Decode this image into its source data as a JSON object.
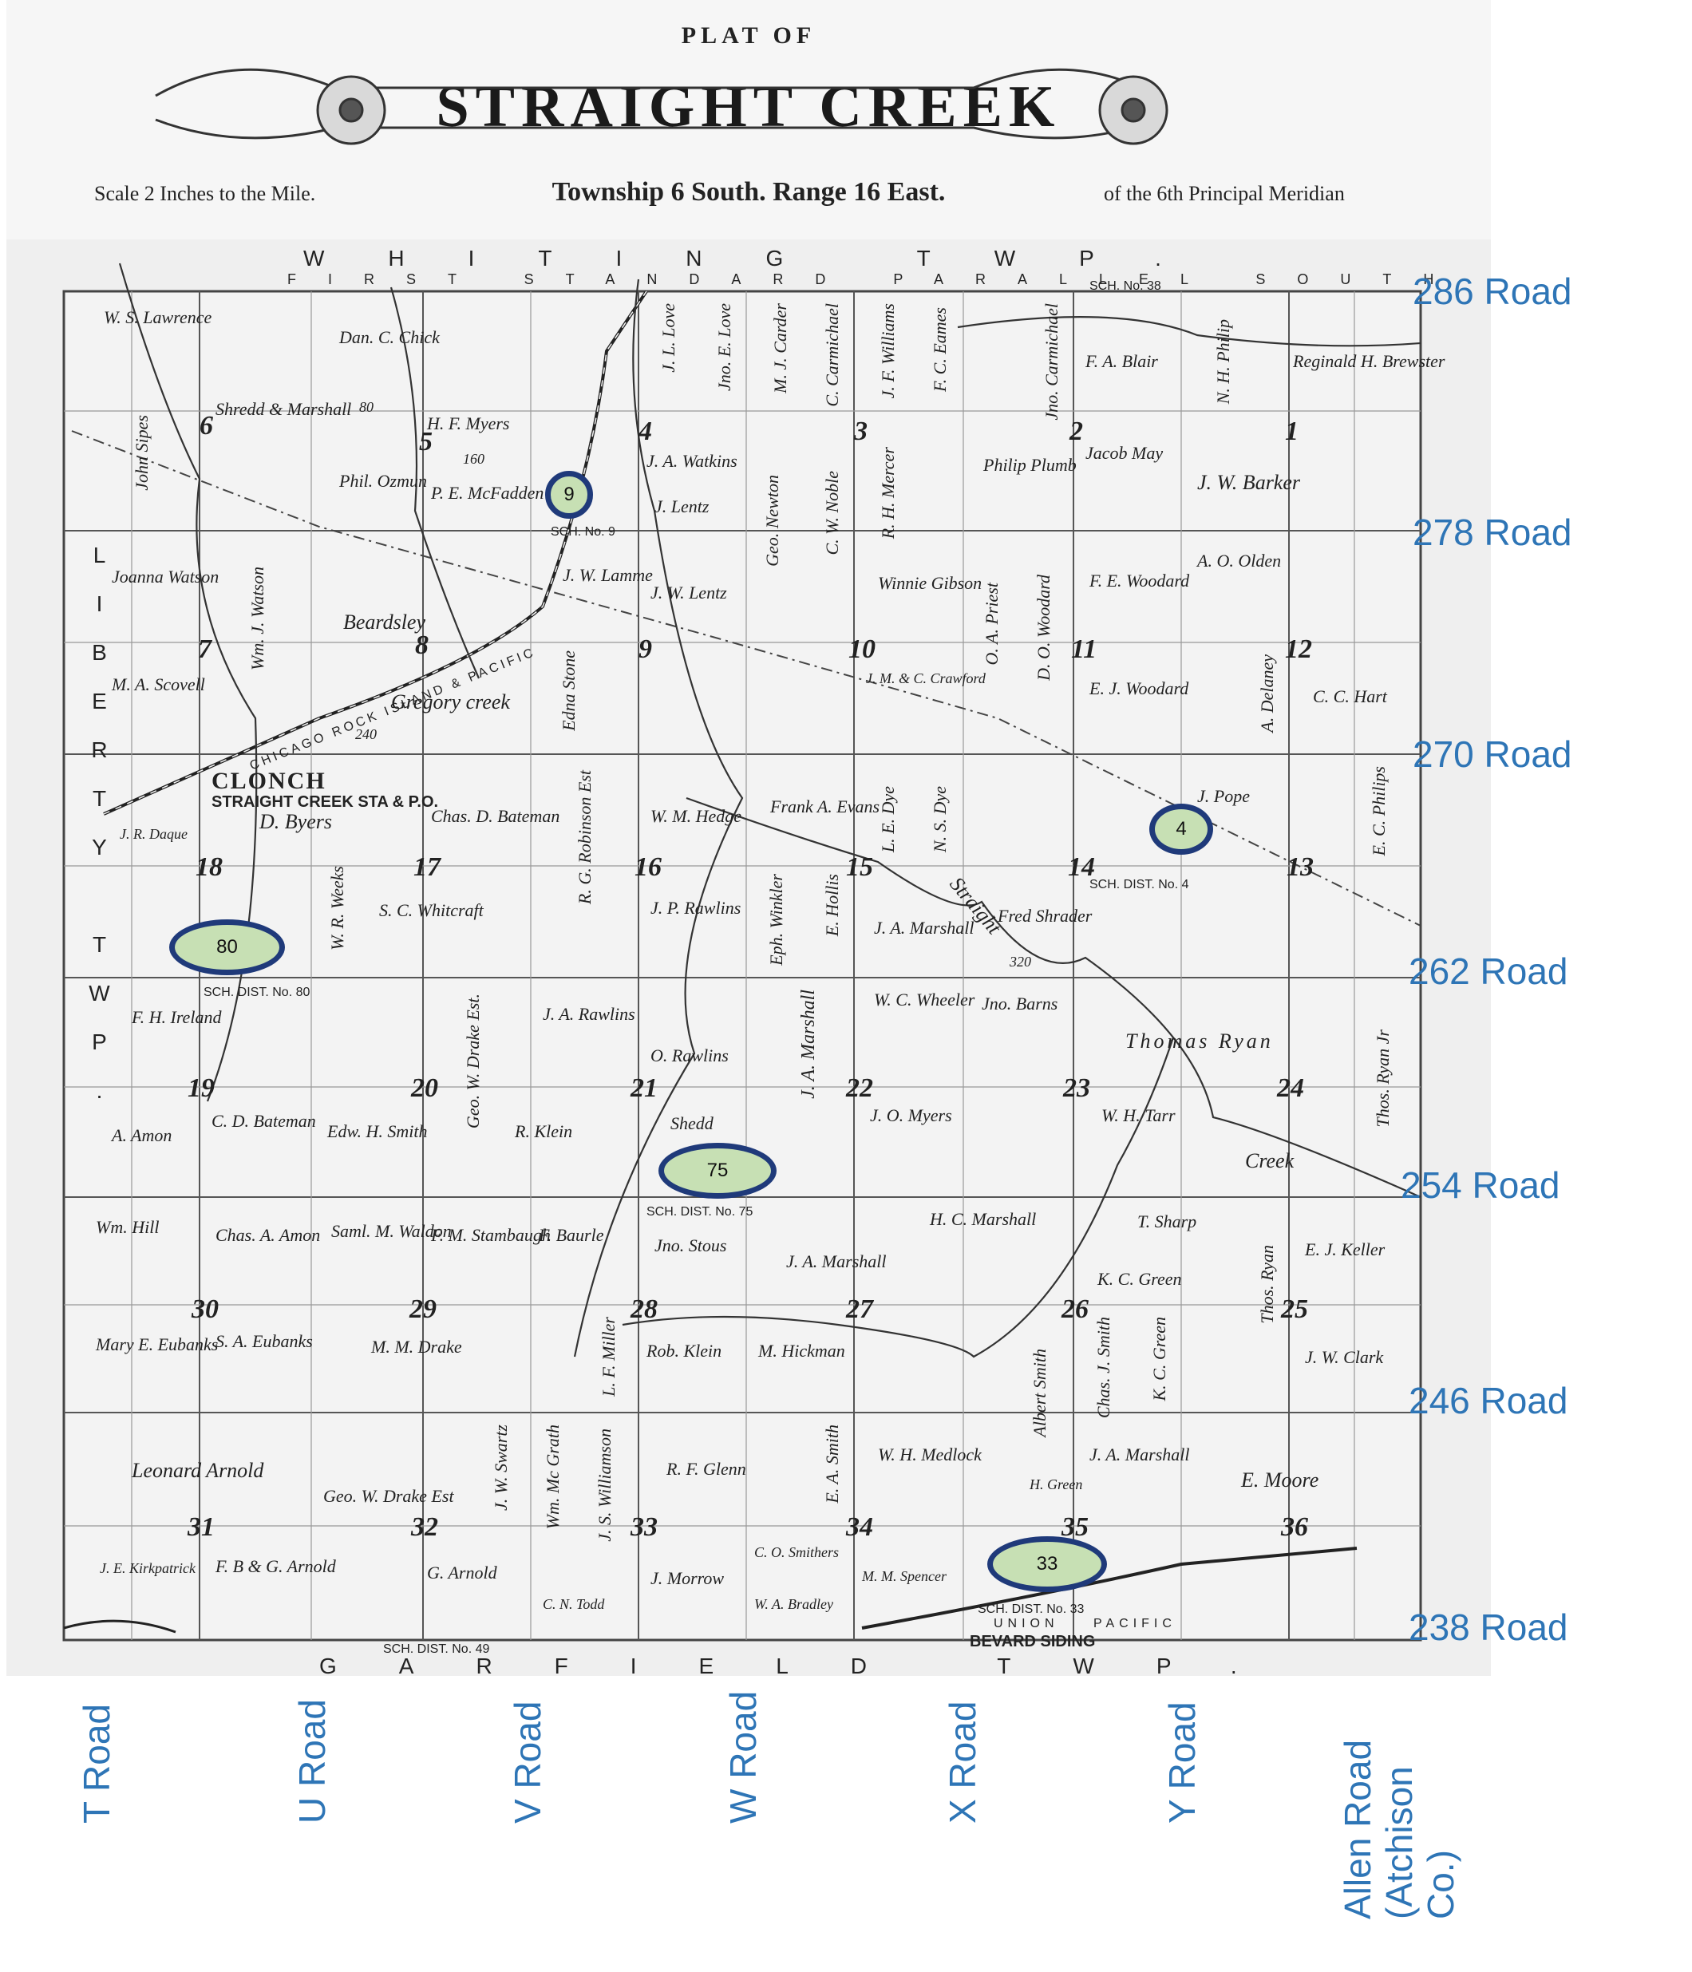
{
  "header": {
    "plat_of": "PLAT OF",
    "title": "STRAIGHT CREEK",
    "scale": "Scale 2 Inches to the Mile.",
    "township": "Township 6 South. Range 16 East.",
    "meridian": "of the 6th Principal Meridian"
  },
  "border_labels": {
    "north": "WHITING TWP.",
    "north_parallel": "FIRST STANDARD PARALLEL SOUTH",
    "south": "GARFIELD TWP.",
    "west": "LIBERTY TWP."
  },
  "places": {
    "clonch": "CLONCH",
    "station": "STRAIGHT CREEK STA & P.O.",
    "bevard": "BEVARD SIDING",
    "railroad": "CHICAGO ROCK ISLAND & PACIFIC",
    "creek1": "Gregory creek",
    "creek2": "Straight",
    "creek3": "Creek"
  },
  "sections": [
    "6",
    "5",
    "4",
    "3",
    "2",
    "1",
    "7",
    "8",
    "9",
    "10",
    "11",
    "12",
    "18",
    "17",
    "16",
    "15",
    "14",
    "13",
    "19",
    "20",
    "21",
    "22",
    "23",
    "24",
    "30",
    "29",
    "28",
    "27",
    "26",
    "25",
    "31",
    "32",
    "33",
    "34",
    "35",
    "36"
  ],
  "owners": {
    "s6a": "W. S. Lawrence",
    "s6b": "Shredd & Marshall",
    "s5a": "Dan. C. Chick",
    "s5b": "H. F. Myers",
    "s5c": "Phil. Ozmun",
    "s5d": "P. E. McFadden",
    "s4a": "J. A. Watkins",
    "s4b": "J. Lentz",
    "s2a": "F. A. Blair",
    "s2b": "Philip Plumb",
    "s2c": "Jacob May",
    "s1a": "Reginald H. Brewster",
    "s1b": "J. W. Barker",
    "s7a": "Joanna Watson",
    "s7b": "M. A. Scovell",
    "s8a": "Beardsley",
    "s9a": "J. W. Lamme",
    "s9b": "J. W. Lentz",
    "s10a": "Winnie Gibson",
    "s10b": "J. M. & C. Crawford",
    "s11a": "F. E. Woodard",
    "s11b": "E. J. Woodard",
    "s12a": "A. O. Olden",
    "s12b": "C. C. Hart",
    "s18a": "D. Byers",
    "s18b": "J. R. Daque",
    "s17a": "Chas. D. Bateman",
    "s17b": "S. C. Whitcraft",
    "s16a": "W. M. Hedge",
    "s16b": "J. P. Rawlins",
    "s15a": "Frank A. Evans",
    "s15b": "J. A. Marshall",
    "s14a": "Fred Shrader",
    "s13a": "J. Pope",
    "s19a": "F. H. Ireland",
    "s19b": "C. D. Bateman",
    "s19c": "A. Amon",
    "s20a": "Edw. H. Smith",
    "s21a": "J. A. Rawlins",
    "s21b": "R. Klein",
    "s21c": "O. Rawlins",
    "s21d": "Shedd",
    "s22a": "W. C. Wheeler",
    "s22b": "J. O. Myers",
    "s23a": "Jno. Barns",
    "s23b": "Thomas Ryan",
    "s24a": "W. H. Tarr",
    "s30a": "Wm. Hill",
    "s30b": "Chas. A. Amon",
    "s30c": "Mary E. Eubanks",
    "s30d": "S. A. Eubanks",
    "s29a": "Saml. M. Waldon",
    "s29b": "F. M. Stambaugh",
    "s29c": "M. M. Drake",
    "s28a": "F. Baurle",
    "s28b": "Jno. Stous",
    "s28c": "Rob. Klein",
    "s27a": "J. A. Marshall",
    "s27b": "M. Hickman",
    "s26a": "H. C. Marshall",
    "s26b": "K. C. Green",
    "s25a": "E. J. Keller",
    "s25b": "J. W. Clark",
    "s25c": "T. Sharp",
    "s31a": "Leonard Arnold",
    "s31b": "J. E. Kirkpatrick",
    "s31c": "F. B & G. Arnold",
    "s32a": "Geo. W. Drake Est",
    "s32b": "G. Arnold",
    "s33a": "R. F. Glenn",
    "s33b": "J. Morrow",
    "s33c": "C. N. Todd",
    "s34a": "W. H. Medlock",
    "s34b": "C. O. Smithers",
    "s34c": "M. M. Spencer",
    "s34d": "W. A. Bradley",
    "s35a": "J. A. Marshall",
    "s36a": "E. Moore",
    "s35b": "H. Green"
  },
  "vertical_owners": {
    "v1": "J. L. Love",
    "v2": "Jno. E. Love",
    "v3": "M. J. Carder",
    "v4": "C. Carmichael",
    "v5": "J. F. Williams",
    "v6": "F. C. Eames",
    "v7": "Jno. Carmichael",
    "v8": "N. H. Philip",
    "v9": "Geo. Newton",
    "v10": "C. W. Noble",
    "v11": "R. H. Mercer",
    "v12": "Wm. J. Watson",
    "v13": "Edna Stone",
    "v14": "O. A. Priest",
    "v15": "D. O. Woodard",
    "v16": "A. Delaney",
    "v17": "R. G. Robinson Est",
    "v18": "W. R. Weeks",
    "v19": "Eph. Winkler",
    "v20": "E. Hollis",
    "v21": "L. E. Dye",
    "v22": "N. S. Dye",
    "v23": "J. A. Marshall",
    "v24": "Geo. W. Drake Est.",
    "v25": "Thos. Ryan",
    "v26": "J. W. Swartz",
    "v27": "Wm. Mc Grath",
    "v28": "J. S. Williamson",
    "v29": "E. A. Smith",
    "v30": "Albert Smith",
    "v31": "Chas. J. Smith",
    "v32": "K. C. Green",
    "v33": "Thos. Ryan Jr",
    "v34": "L. F. Miller",
    "v35": "John Sipes",
    "v36": "E. C. Philips"
  },
  "small_labels": {
    "sch38": "SCH. No. 38",
    "sch9": "SCH. No. 9",
    "sch4": "SCH. DIST. No. 4",
    "sch80": "SCH. DIST. No. 80",
    "sch75": "SCH. DIST. No. 75",
    "sch33": "SCH. DIST. No. 33",
    "sch49": "SCH. DIST. No. 49",
    "union": "UNION",
    "pacific": "PACIFIC",
    "acres1": "160",
    "acres2": "80",
    "acres3": "320",
    "acres4": "240"
  },
  "roads_horizontal": [
    "286 Road",
    "278 Road",
    "270 Road",
    "262 Road",
    "254 Road",
    "246 Road",
    "238 Road"
  ],
  "roads_vertical": [
    "T Road",
    "U Road",
    "V Road",
    "W Road",
    "X Road",
    "Y Road",
    "Allen Road\n(Atchison\nCo.)"
  ],
  "schools": [
    "9",
    "4",
    "80",
    "75",
    "33"
  ],
  "colors": {
    "road_label": "#2e75b6",
    "school_fill": "#c7e0b4",
    "school_border": "#1f3a7a"
  }
}
